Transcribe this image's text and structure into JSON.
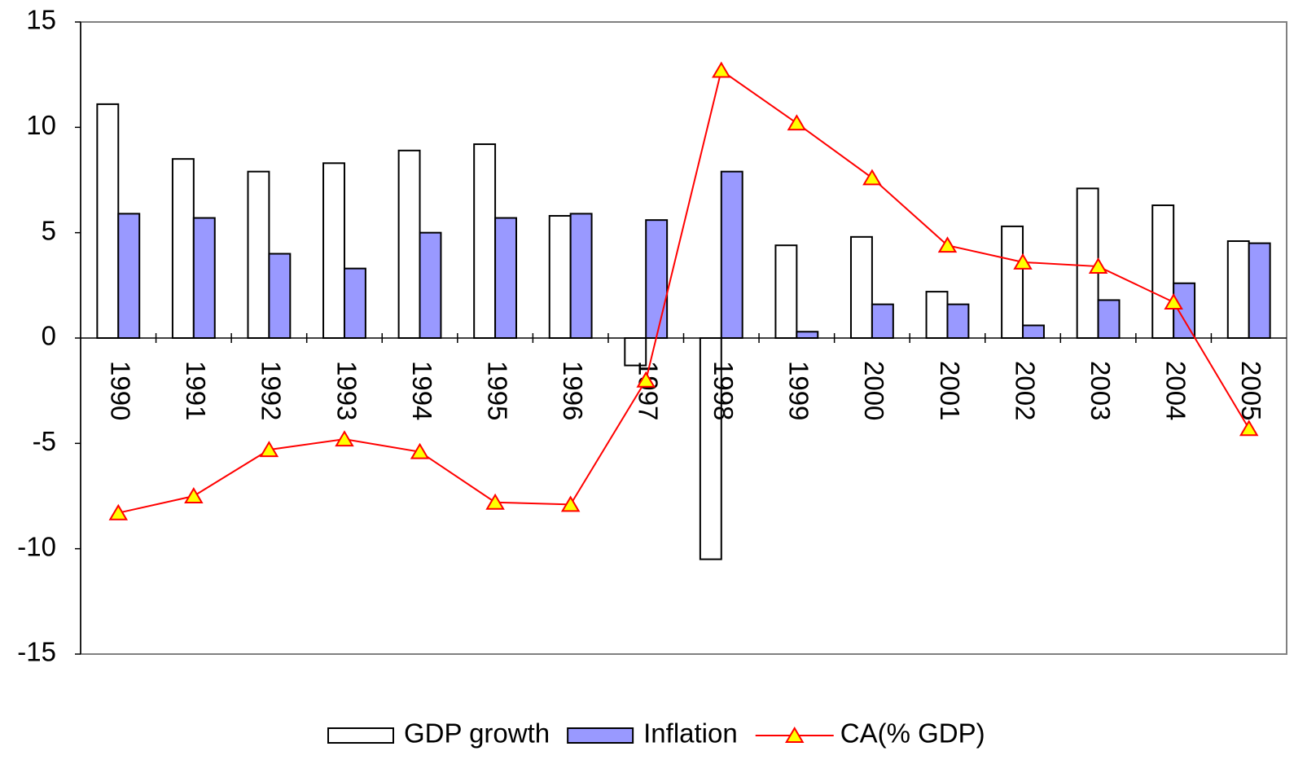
{
  "chart_data": {
    "type": "bar",
    "categories": [
      "1990",
      "1991",
      "1992",
      "1993",
      "1994",
      "1995",
      "1996",
      "1997",
      "1998",
      "1999",
      "2000",
      "2001",
      "2002",
      "2003",
      "2004",
      "2005"
    ],
    "series": [
      {
        "name": "GDP growth",
        "type": "bar",
        "color": "#ffffff",
        "values": [
          11.1,
          8.5,
          7.9,
          8.3,
          8.9,
          9.2,
          5.8,
          -1.3,
          -10.5,
          4.4,
          4.8,
          2.2,
          5.3,
          7.1,
          6.3,
          4.6
        ]
      },
      {
        "name": "Inflation",
        "type": "bar",
        "color": "#9999ff",
        "values": [
          5.9,
          5.7,
          4.0,
          3.3,
          5.0,
          5.7,
          5.9,
          5.6,
          7.9,
          0.3,
          1.6,
          1.6,
          0.6,
          1.8,
          2.6,
          4.5
        ]
      },
      {
        "name": "CA(% GDP)",
        "type": "line",
        "color": "#ff0000",
        "marker_color": "#ffff00",
        "values": [
          -8.3,
          -7.5,
          -5.3,
          -4.8,
          -5.4,
          -7.8,
          -7.9,
          -2.0,
          12.7,
          10.2,
          7.6,
          4.4,
          3.6,
          3.4,
          1.7,
          -4.3
        ]
      }
    ],
    "ylim": [
      -15,
      15
    ],
    "yticks": [
      -15,
      -10,
      -5,
      0,
      5,
      10,
      15
    ],
    "grid": false,
    "legend": "bottom"
  }
}
